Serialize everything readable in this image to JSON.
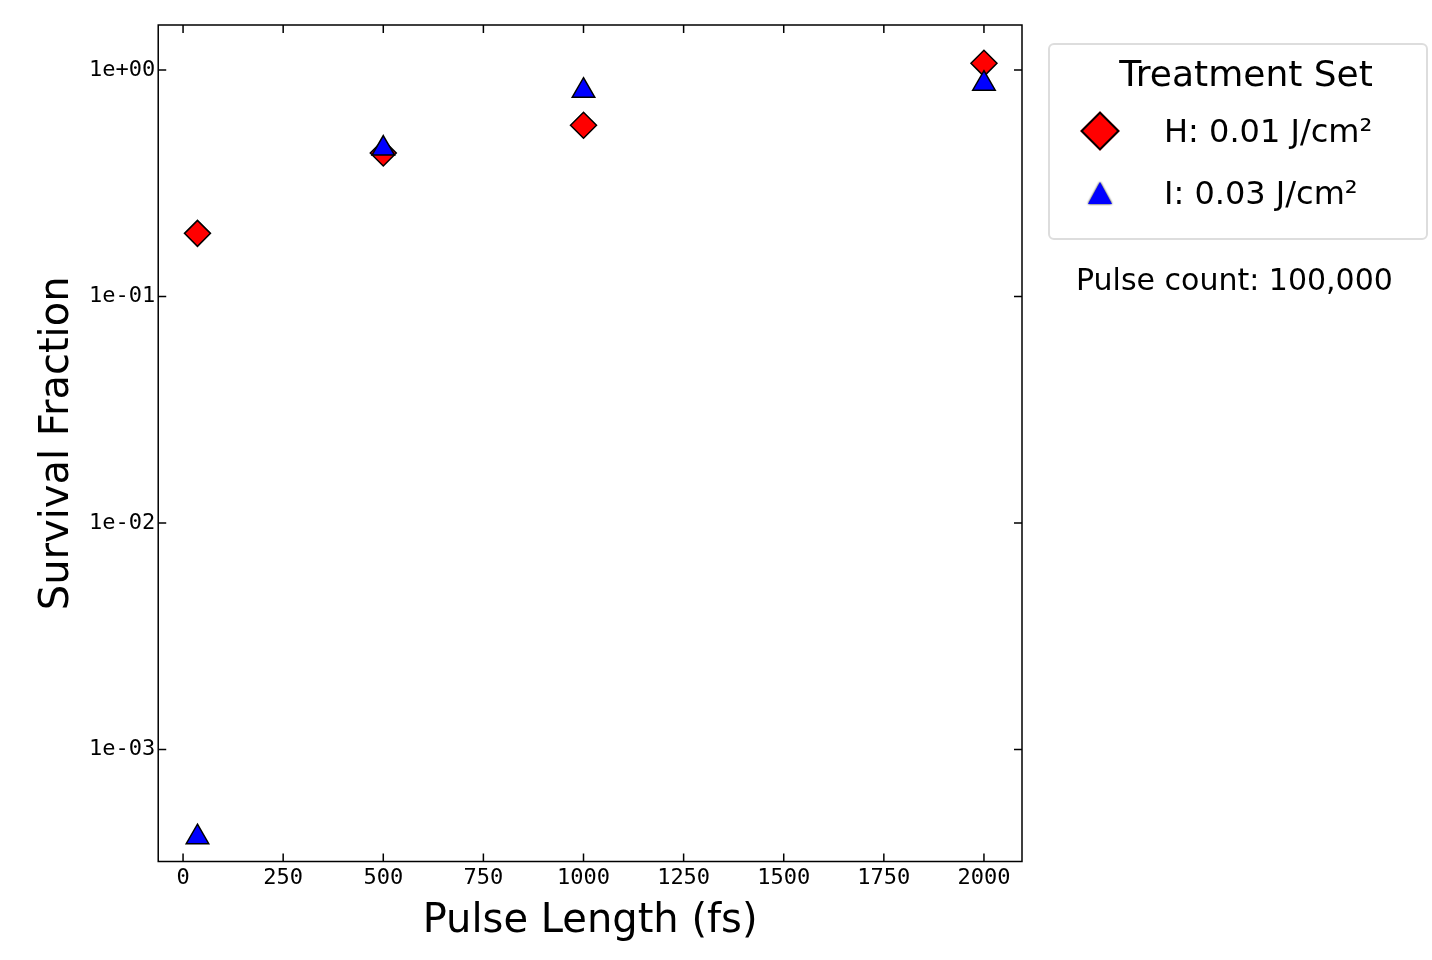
{
  "chart_data": {
    "type": "scatter",
    "xlabel": "Pulse Length (fs)",
    "ylabel": "Survival Fraction",
    "legend_title": "Treatment Set",
    "legend": "right",
    "series": [
      {
        "name": "H: 0.01 J/cm²",
        "color": "#ff0000",
        "marker": "diamond",
        "x": [
          36,
          500,
          1000,
          2000
        ],
        "values": [
          0.19,
          0.43,
          0.57,
          1.07
        ]
      },
      {
        "name": "I: 0.03 J/cm²",
        "color": "#0000ff",
        "marker": "triangle",
        "x": [
          36,
          500,
          1000,
          2000
        ],
        "values": [
          0.00041,
          0.45,
          0.81,
          0.87
        ]
      }
    ],
    "log": "y",
    "grid": false,
    "xlim": [
      -62,
      2095
    ],
    "xticks": [
      0,
      250,
      500,
      750,
      1000,
      1250,
      1500,
      1750,
      2000
    ],
    "ylim": [
      0.00032,
      1.58
    ],
    "yticks": [
      {
        "value": 0.001,
        "label": "1e-03"
      },
      {
        "value": 0.01,
        "label": "1e-02"
      },
      {
        "value": 0.1,
        "label": "1e-01"
      },
      {
        "value": 1,
        "label": "1e+00"
      }
    ],
    "annotations": [
      "Pulse count: 100,000"
    ]
  }
}
